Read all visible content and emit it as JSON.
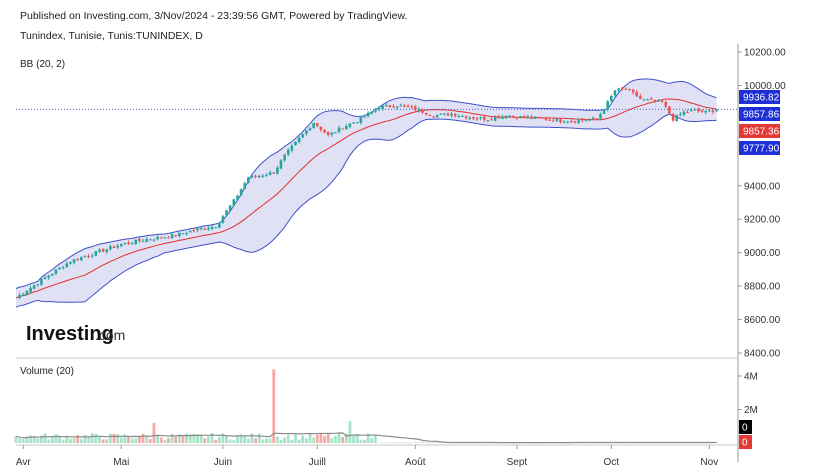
{
  "header": {
    "published": "Published on Investing.com, 3/Nov/2024 - 23:39:56 GMT, Powered by TradingView.",
    "symbol": "Tunindex, Tunisie, Tunis:TUNINDEX, D",
    "indicator": "BB (20, 2)",
    "volume_label": "Volume (20)"
  },
  "logo": {
    "text": "Investing",
    "suffix": ".com"
  },
  "colors": {
    "up": "#26a69a",
    "down": "#ef5350",
    "band_fill": "#dcdcf4",
    "band_line": "#3f51c8",
    "basis": "#e0302a",
    "vol_up": "#a6e3c9",
    "vol_down": "#f6a9a4",
    "vol_ma": "#8c8c8c",
    "tag_blue": "#1e2fd6",
    "tag_red": "#e53935",
    "tag_black": "#000000"
  },
  "chart_data": [
    {
      "type": "candlestick",
      "title": "",
      "price_axis": {
        "ylim": [
          8400,
          10200
        ],
        "ticks": [
          "10200.00",
          "10000.00",
          "9400.00",
          "9200.00",
          "9000.00",
          "8800.00",
          "8600.00",
          "8400.00"
        ],
        "tick_values": [
          10200,
          10000,
          9400,
          9200,
          9000,
          8800,
          8600,
          8400
        ]
      },
      "x_axis": {
        "labels": [
          "Avr",
          "Mai",
          "Juin",
          "Juill",
          "Août",
          "Sept",
          "Oct",
          "Nov"
        ],
        "label_days": [
          2,
          29,
          57,
          83,
          110,
          138,
          164,
          191
        ]
      },
      "indicator": "Bollinger Bands (20, 2)",
      "price_tags": [
        {
          "label": "9936.82",
          "value": 9936.82,
          "color": "tag_blue"
        },
        {
          "label": "9857.86",
          "value": 9857.86,
          "color": "tag_blue"
        },
        {
          "label": "9857.36",
          "value": 9857.36,
          "color": "tag_red"
        },
        {
          "label": "9777.90",
          "value": 9777.9,
          "color": "tag_blue"
        }
      ],
      "current_price": 9857.36,
      "close_series_approx": {
        "day": [
          0,
          8,
          15,
          22,
          29,
          36,
          43,
          50,
          55,
          60,
          64,
          67,
          71,
          74,
          78,
          82,
          86,
          90,
          95,
          100,
          105,
          110,
          115,
          120,
          125,
          130,
          135,
          140,
          145,
          150,
          155,
          160,
          162,
          165,
          168,
          172,
          175,
          178,
          181,
          184,
          187,
          190,
          193
        ],
        "close": [
          8730,
          8850,
          8950,
          9000,
          9050,
          9080,
          9100,
          9140,
          9160,
          9310,
          9450,
          9460,
          9480,
          9580,
          9680,
          9780,
          9700,
          9750,
          9800,
          9870,
          9880,
          9860,
          9820,
          9830,
          9810,
          9800,
          9820,
          9810,
          9800,
          9790,
          9790,
          9800,
          9860,
          9970,
          9980,
          9920,
          9905,
          9900,
          9800,
          9840,
          9850,
          9840,
          9857
        ]
      }
    },
    {
      "type": "bar",
      "title": "",
      "series_name": "Volume (20)",
      "y_axis": {
        "ticks": [
          "4M",
          "2M"
        ],
        "tick_values": [
          4000000,
          2000000
        ],
        "ylim": [
          0,
          5000000
        ]
      },
      "tags": [
        {
          "label": "0",
          "color": "tag_black"
        },
        {
          "label": "0",
          "color": "tag_red"
        }
      ],
      "volume_spikes_approx": [
        {
          "day": 71,
          "value": 4400000
        },
        {
          "day": 38,
          "value": 1200000
        },
        {
          "day": 92,
          "value": 1300000
        }
      ]
    }
  ]
}
